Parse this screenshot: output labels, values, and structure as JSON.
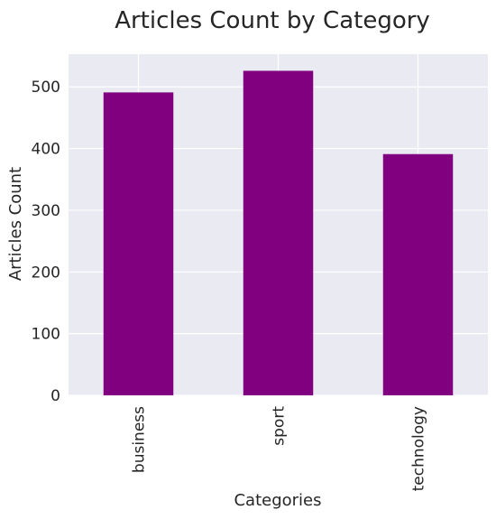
{
  "chart_data": {
    "type": "bar",
    "title": "Articles Count by Category",
    "xlabel": "Categories",
    "ylabel": "Articles Count",
    "categories": [
      "business",
      "sport",
      "technology"
    ],
    "values": [
      491,
      526,
      391
    ],
    "ylim": [
      0,
      553
    ],
    "yticks": [
      0,
      100,
      200,
      300,
      400,
      500
    ],
    "grid": true,
    "legend": "none",
    "x_tick_rotation": "vertical",
    "colors": {
      "bar": "#800080",
      "plot_background": "#eaeaf2",
      "grid": "#ffffff",
      "text": "#262626"
    }
  }
}
